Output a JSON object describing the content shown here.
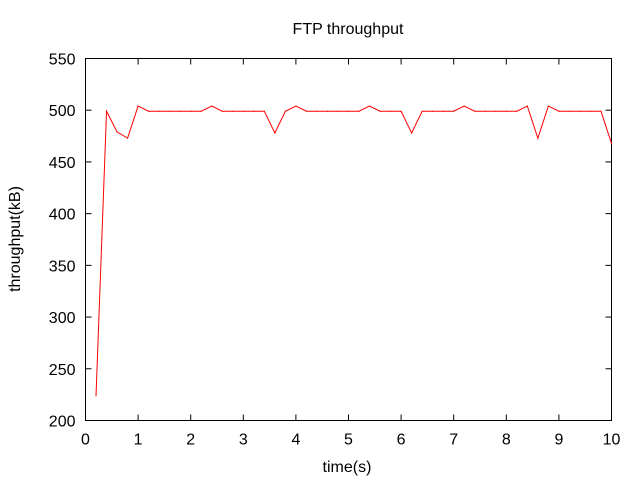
{
  "chart_data": {
    "type": "line",
    "title": "FTP throughput",
    "xlabel": "time(s)",
    "ylabel": "throughput(kB)",
    "xlim": [
      0,
      10
    ],
    "ylim": [
      200,
      550
    ],
    "grid": false,
    "x_ticks": [
      "0",
      "1",
      "2",
      "3",
      "4",
      "5",
      "6",
      "7",
      "8",
      "9",
      "10"
    ],
    "y_ticks": [
      "200",
      "250",
      "300",
      "350",
      "400",
      "450",
      "500",
      "550"
    ],
    "series": [
      {
        "color": "#ff0000",
        "x": [
          0.2,
          0.4,
          0.6,
          0.8,
          1.0,
          1.2,
          1.4,
          1.6,
          1.8,
          2.0,
          2.2,
          2.4,
          2.6,
          2.8,
          3.0,
          3.2,
          3.4,
          3.6,
          3.8,
          4.0,
          4.2,
          4.4,
          4.6,
          4.8,
          5.0,
          5.2,
          5.4,
          5.6,
          5.8,
          6.0,
          6.2,
          6.4,
          6.6,
          6.8,
          7.0,
          7.2,
          7.4,
          7.6,
          7.8,
          8.0,
          8.2,
          8.4,
          8.6,
          8.8,
          9.0,
          9.2,
          9.4,
          9.6,
          9.8,
          10.0
        ],
        "y": [
          224,
          499,
          479,
          473,
          504,
          499,
          499,
          499,
          499,
          499,
          499,
          504,
          499,
          499,
          499,
          499,
          499,
          478,
          499,
          504,
          499,
          499,
          499,
          499,
          499,
          499,
          504,
          499,
          499,
          499,
          478,
          499,
          499,
          499,
          499,
          504,
          499,
          499,
          499,
          499,
          499,
          504,
          473,
          504,
          499,
          499,
          499,
          499,
          499,
          468
        ]
      }
    ]
  }
}
